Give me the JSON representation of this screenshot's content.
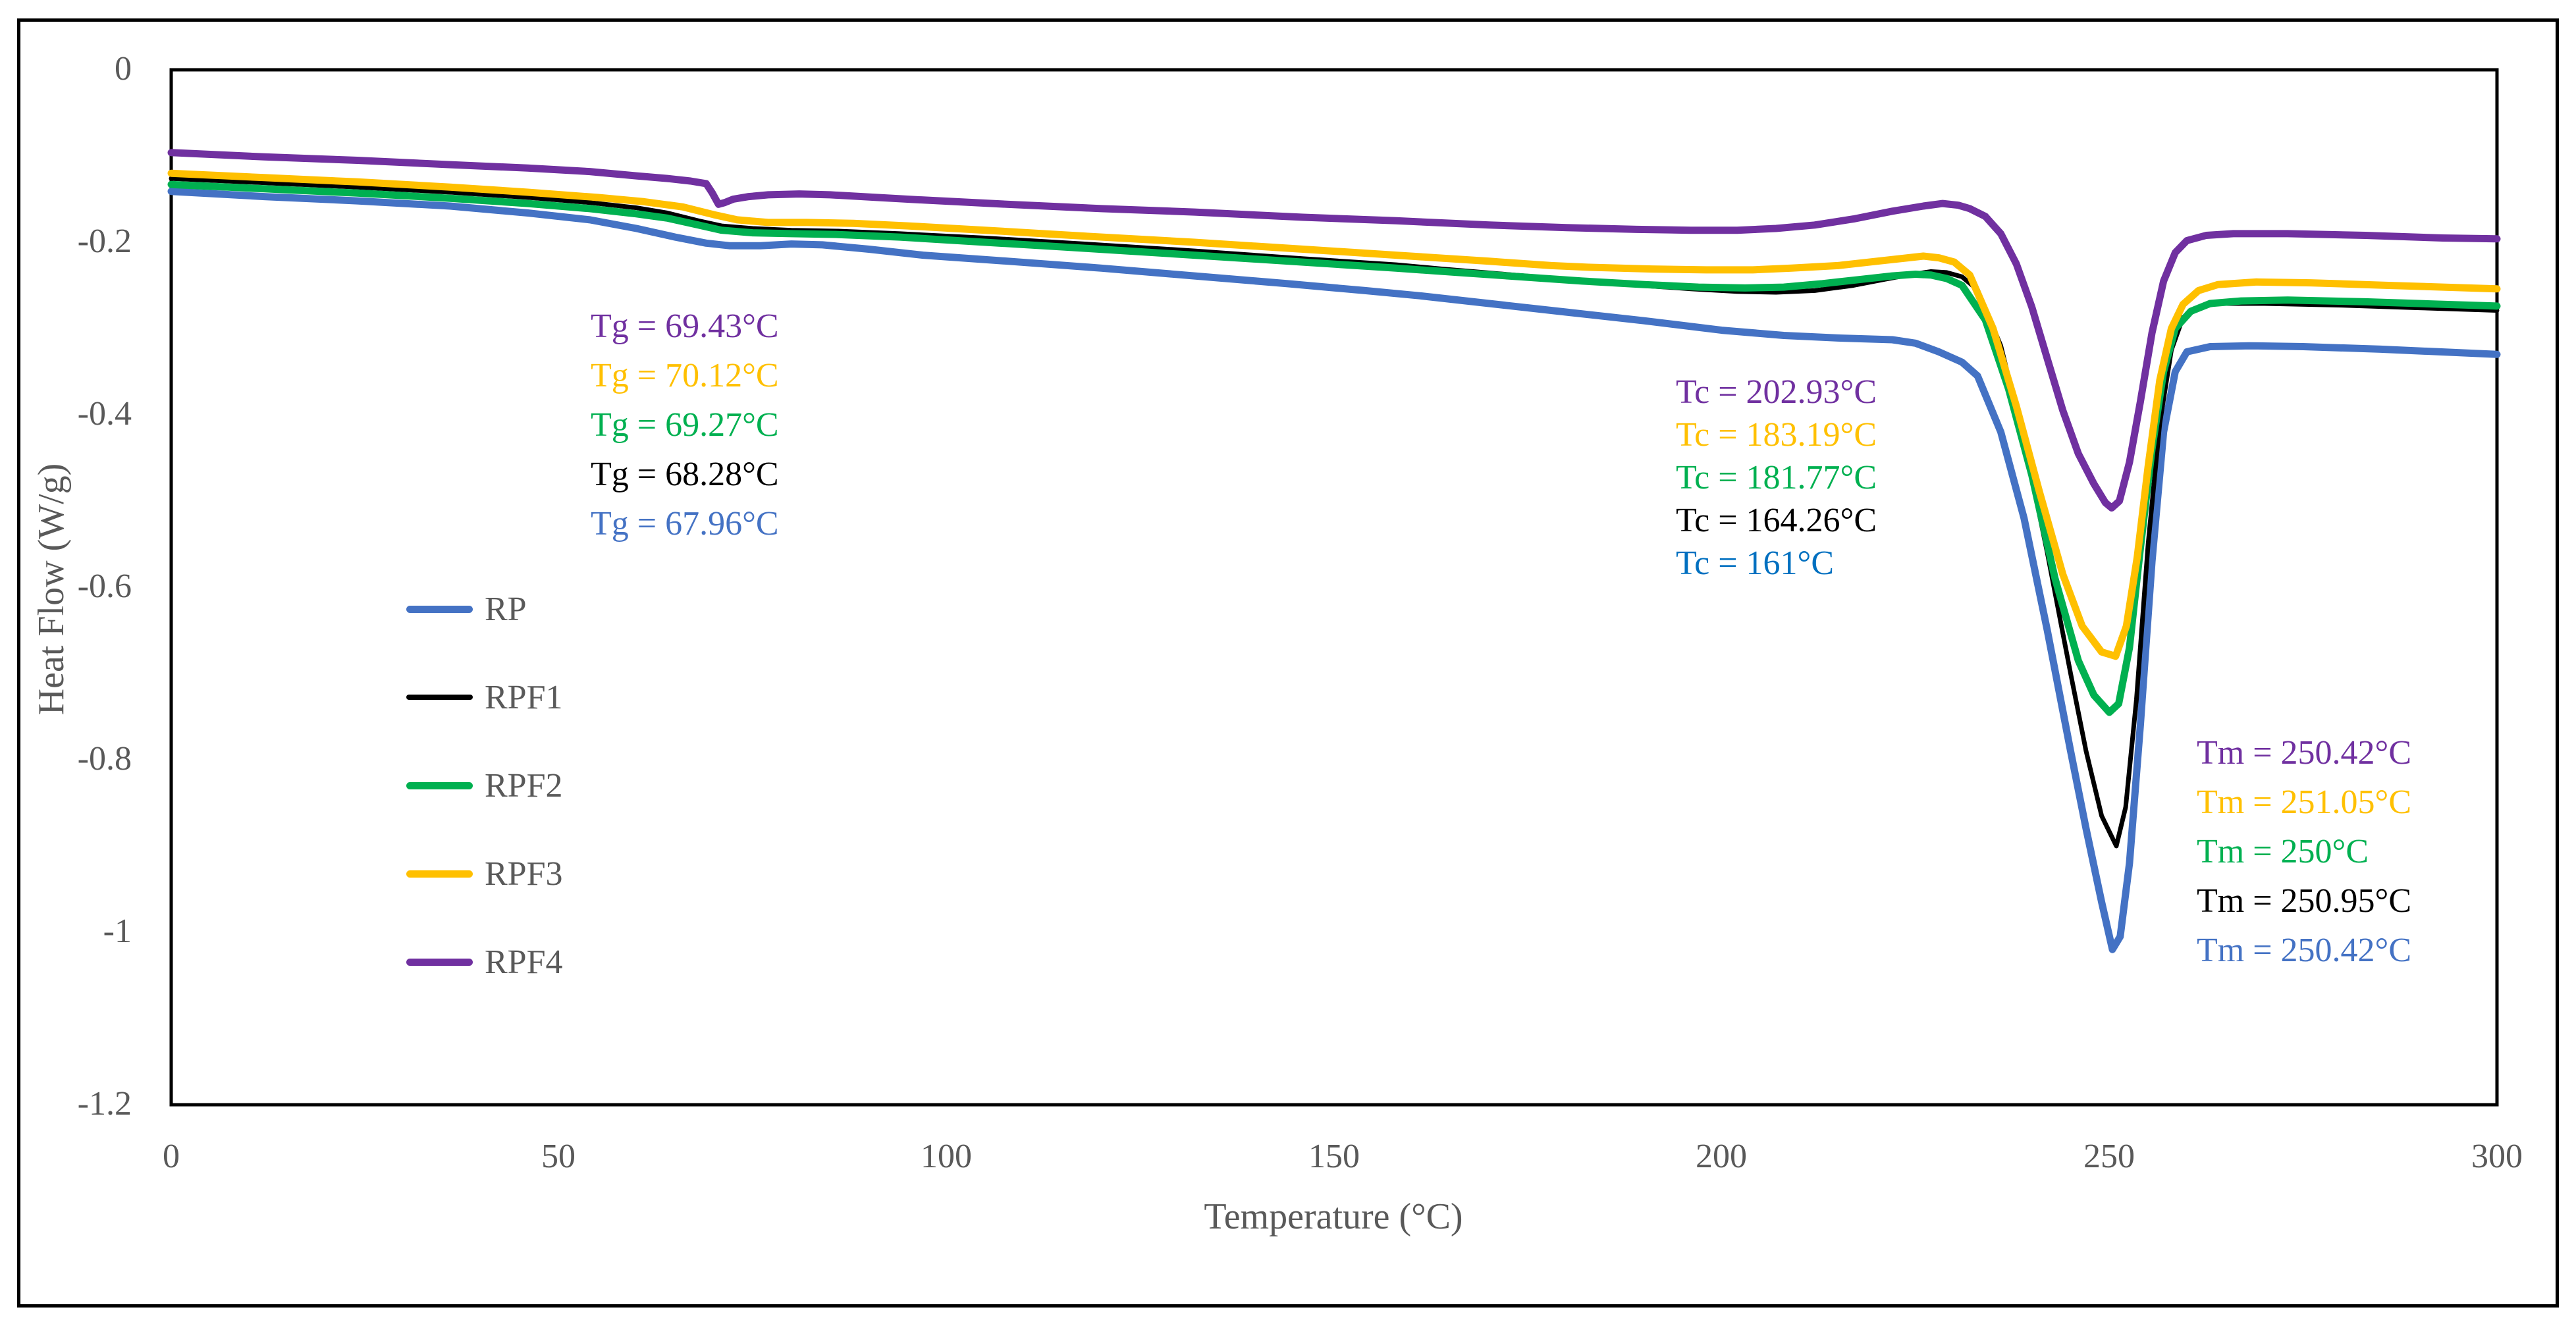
{
  "figure": {
    "background": "#ffffff",
    "border_color": "#000000",
    "text_color": "#595959"
  },
  "axes": {
    "x": {
      "title": "Temperature (°C)",
      "ticks": [
        "0",
        "50",
        "100",
        "150",
        "200",
        "250",
        "300"
      ]
    },
    "y": {
      "title": "Heat Flow (W/g)",
      "ticks": [
        "0",
        "-0.2",
        "-0.4",
        "-0.6",
        "-0.8",
        "-1",
        "-1.2"
      ]
    }
  },
  "legend": {
    "items": [
      {
        "label": "RP",
        "color": "#4472C4",
        "thickness": 11
      },
      {
        "label": "RPF1",
        "color": "#000000",
        "thickness": 8
      },
      {
        "label": "RPF2",
        "color": "#00B050",
        "thickness": 11
      },
      {
        "label": "RPF3",
        "color": "#FFC000",
        "thickness": 11
      },
      {
        "label": "RPF4",
        "color": "#7030A0",
        "thickness": 11
      }
    ]
  },
  "annotations": {
    "tg": [
      {
        "text": "Tg = 69.43°C",
        "color": "#7030A0"
      },
      {
        "text": "Tg = 70.12°C",
        "color": "#FFC000"
      },
      {
        "text": "Tg = 69.27°C",
        "color": "#00B050"
      },
      {
        "text": "Tg = 68.28°C",
        "color": "#000000"
      },
      {
        "text": "Tg = 67.96°C",
        "color": "#4472C4"
      }
    ],
    "tc": [
      {
        "text": "Tc = 202.93°C",
        "color": "#7030A0"
      },
      {
        "text": "Tc = 183.19°C",
        "color": "#FFC000"
      },
      {
        "text": "Tc = 181.77°C",
        "color": "#00B050"
      },
      {
        "text": "Tc = 164.26°C",
        "color": "#000000"
      },
      {
        "text": "Tc = 161°C",
        "color": "#0070C0"
      }
    ],
    "tm": [
      {
        "text": "Tm = 250.42°C",
        "color": "#7030A0"
      },
      {
        "text": "Tm = 251.05°C",
        "color": "#FFC000"
      },
      {
        "text": "Tm = 250°C",
        "color": "#00B050"
      },
      {
        "text": "Tm = 250.95°C",
        "color": "#000000"
      },
      {
        "text": "Tm = 250.42°C",
        "color": "#4472C4"
      }
    ]
  },
  "chart_data": {
    "type": "line",
    "title": "",
    "xlabel": "Temperature (°C)",
    "ylabel": "Heat Flow (W/g)",
    "xlim": [
      0,
      300
    ],
    "ylim": [
      -1.2,
      0
    ],
    "grid": false,
    "legend_position": "inside-left",
    "series": [
      {
        "name": "RP",
        "color": "#4472C4",
        "width": 11,
        "tg_c": 67.96,
        "tc_c": 161,
        "tm_c": 250.42,
        "points": [
          [
            0,
            -0.141
          ],
          [
            12,
            -0.147
          ],
          [
            24,
            -0.152
          ],
          [
            36,
            -0.158
          ],
          [
            46,
            -0.166
          ],
          [
            54,
            -0.174
          ],
          [
            60,
            -0.184
          ],
          [
            65,
            -0.194
          ],
          [
            69,
            -0.201
          ],
          [
            72,
            -0.204
          ],
          [
            76,
            -0.204
          ],
          [
            80,
            -0.202
          ],
          [
            84,
            -0.203
          ],
          [
            90,
            -0.208
          ],
          [
            97,
            -0.215
          ],
          [
            108,
            -0.222
          ],
          [
            120,
            -0.23
          ],
          [
            132,
            -0.239
          ],
          [
            144,
            -0.248
          ],
          [
            154,
            -0.256
          ],
          [
            161,
            -0.262
          ],
          [
            170,
            -0.271
          ],
          [
            180,
            -0.281
          ],
          [
            190,
            -0.291
          ],
          [
            200,
            -0.302
          ],
          [
            208,
            -0.308
          ],
          [
            215,
            -0.311
          ],
          [
            222,
            -0.313
          ],
          [
            225,
            -0.317
          ],
          [
            228,
            -0.327
          ],
          [
            231,
            -0.339
          ],
          [
            233,
            -0.355
          ],
          [
            236,
            -0.42
          ],
          [
            239,
            -0.52
          ],
          [
            242,
            -0.65
          ],
          [
            245,
            -0.79
          ],
          [
            247,
            -0.88
          ],
          [
            249,
            -0.965
          ],
          [
            250.4,
            -1.02
          ],
          [
            251.4,
            -1.005
          ],
          [
            252.6,
            -0.92
          ],
          [
            254,
            -0.76
          ],
          [
            255.5,
            -0.57
          ],
          [
            257,
            -0.42
          ],
          [
            258.5,
            -0.35
          ],
          [
            260,
            -0.327
          ],
          [
            263,
            -0.321
          ],
          [
            268,
            -0.32
          ],
          [
            275,
            -0.321
          ],
          [
            285,
            -0.324
          ],
          [
            300,
            -0.33
          ]
        ]
      },
      {
        "name": "RPF1",
        "color": "#000000",
        "width": 7,
        "tg_c": 68.28,
        "tc_c": 164.26,
        "tm_c": 250.95,
        "points": [
          [
            0,
            -0.126
          ],
          [
            12,
            -0.131
          ],
          [
            24,
            -0.136
          ],
          [
            36,
            -0.142
          ],
          [
            46,
            -0.148
          ],
          [
            54,
            -0.154
          ],
          [
            60,
            -0.16
          ],
          [
            64,
            -0.166
          ],
          [
            68,
            -0.175
          ],
          [
            71,
            -0.181
          ],
          [
            75,
            -0.184
          ],
          [
            80,
            -0.186
          ],
          [
            86,
            -0.187
          ],
          [
            94,
            -0.19
          ],
          [
            105,
            -0.195
          ],
          [
            118,
            -0.202
          ],
          [
            132,
            -0.21
          ],
          [
            146,
            -0.219
          ],
          [
            158,
            -0.226
          ],
          [
            164,
            -0.231
          ],
          [
            172,
            -0.237
          ],
          [
            180,
            -0.243
          ],
          [
            188,
            -0.249
          ],
          [
            196,
            -0.254
          ],
          [
            202,
            -0.257
          ],
          [
            207,
            -0.258
          ],
          [
            212,
            -0.256
          ],
          [
            217,
            -0.25
          ],
          [
            221,
            -0.243
          ],
          [
            224,
            -0.238
          ],
          [
            227,
            -0.234
          ],
          [
            229,
            -0.235
          ],
          [
            231,
            -0.24
          ],
          [
            233,
            -0.255
          ],
          [
            236,
            -0.32
          ],
          [
            239,
            -0.43
          ],
          [
            242,
            -0.56
          ],
          [
            245,
            -0.7
          ],
          [
            247,
            -0.79
          ],
          [
            249,
            -0.865
          ],
          [
            250.9,
            -0.9
          ],
          [
            252.1,
            -0.855
          ],
          [
            253.5,
            -0.73
          ],
          [
            255,
            -0.55
          ],
          [
            256.5,
            -0.41
          ],
          [
            258,
            -0.325
          ],
          [
            259.5,
            -0.287
          ],
          [
            261.5,
            -0.275
          ],
          [
            264,
            -0.271
          ],
          [
            270,
            -0.271
          ],
          [
            280,
            -0.273
          ],
          [
            290,
            -0.276
          ],
          [
            300,
            -0.279
          ]
        ]
      },
      {
        "name": "RPF2",
        "color": "#00B050",
        "width": 11,
        "tg_c": 69.27,
        "tc_c": 181.77,
        "tm_c": 250,
        "points": [
          [
            0,
            -0.133
          ],
          [
            12,
            -0.138
          ],
          [
            24,
            -0.143
          ],
          [
            36,
            -0.149
          ],
          [
            46,
            -0.155
          ],
          [
            54,
            -0.161
          ],
          [
            60,
            -0.167
          ],
          [
            64,
            -0.172
          ],
          [
            68,
            -0.18
          ],
          [
            71,
            -0.186
          ],
          [
            75,
            -0.189
          ],
          [
            80,
            -0.19
          ],
          [
            86,
            -0.191
          ],
          [
            94,
            -0.194
          ],
          [
            105,
            -0.2
          ],
          [
            118,
            -0.207
          ],
          [
            132,
            -0.215
          ],
          [
            146,
            -0.223
          ],
          [
            158,
            -0.23
          ],
          [
            166,
            -0.235
          ],
          [
            174,
            -0.24
          ],
          [
            182,
            -0.245
          ],
          [
            190,
            -0.249
          ],
          [
            197,
            -0.252
          ],
          [
            203,
            -0.253
          ],
          [
            208,
            -0.252
          ],
          [
            213,
            -0.248
          ],
          [
            218,
            -0.243
          ],
          [
            222,
            -0.239
          ],
          [
            225,
            -0.237
          ],
          [
            227,
            -0.238
          ],
          [
            229,
            -0.242
          ],
          [
            231,
            -0.25
          ],
          [
            234,
            -0.29
          ],
          [
            237,
            -0.37
          ],
          [
            240,
            -0.47
          ],
          [
            243,
            -0.59
          ],
          [
            246,
            -0.685
          ],
          [
            248,
            -0.725
          ],
          [
            250,
            -0.745
          ],
          [
            251.2,
            -0.735
          ],
          [
            252.6,
            -0.67
          ],
          [
            254,
            -0.555
          ],
          [
            255.5,
            -0.44
          ],
          [
            257,
            -0.35
          ],
          [
            258.5,
            -0.3
          ],
          [
            260.5,
            -0.28
          ],
          [
            263,
            -0.271
          ],
          [
            267,
            -0.268
          ],
          [
            273,
            -0.267
          ],
          [
            283,
            -0.269
          ],
          [
            300,
            -0.274
          ]
        ]
      },
      {
        "name": "RPF3",
        "color": "#FFC000",
        "width": 11,
        "tg_c": 70.12,
        "tc_c": 183.19,
        "tm_c": 251.05,
        "points": [
          [
            0,
            -0.12
          ],
          [
            12,
            -0.125
          ],
          [
            24,
            -0.13
          ],
          [
            36,
            -0.136
          ],
          [
            46,
            -0.142
          ],
          [
            55,
            -0.148
          ],
          [
            61,
            -0.153
          ],
          [
            66,
            -0.159
          ],
          [
            70,
            -0.168
          ],
          [
            73,
            -0.174
          ],
          [
            77,
            -0.177
          ],
          [
            82,
            -0.177
          ],
          [
            88,
            -0.178
          ],
          [
            95,
            -0.181
          ],
          [
            105,
            -0.186
          ],
          [
            118,
            -0.193
          ],
          [
            132,
            -0.2
          ],
          [
            146,
            -0.208
          ],
          [
            158,
            -0.215
          ],
          [
            170,
            -0.222
          ],
          [
            178,
            -0.227
          ],
          [
            183,
            -0.229
          ],
          [
            191,
            -0.231
          ],
          [
            198,
            -0.232
          ],
          [
            204,
            -0.232
          ],
          [
            209,
            -0.23
          ],
          [
            215,
            -0.227
          ],
          [
            220,
            -0.222
          ],
          [
            224,
            -0.218
          ],
          [
            226,
            -0.216
          ],
          [
            228,
            -0.218
          ],
          [
            230,
            -0.223
          ],
          [
            232,
            -0.238
          ],
          [
            235,
            -0.3
          ],
          [
            238,
            -0.39
          ],
          [
            241,
            -0.49
          ],
          [
            244,
            -0.585
          ],
          [
            246.5,
            -0.645
          ],
          [
            249,
            -0.675
          ],
          [
            250.8,
            -0.68
          ],
          [
            252.2,
            -0.645
          ],
          [
            253.6,
            -0.565
          ],
          [
            255,
            -0.46
          ],
          [
            256.5,
            -0.36
          ],
          [
            258,
            -0.3
          ],
          [
            259.5,
            -0.272
          ],
          [
            261.5,
            -0.256
          ],
          [
            264,
            -0.249
          ],
          [
            269,
            -0.246
          ],
          [
            276,
            -0.247
          ],
          [
            286,
            -0.25
          ],
          [
            300,
            -0.254
          ]
        ]
      },
      {
        "name": "RPF4",
        "color": "#7030A0",
        "width": 11,
        "tg_c": 69.43,
        "tc_c": 202.93,
        "tm_c": 250.42,
        "points": [
          [
            0,
            -0.096
          ],
          [
            12,
            -0.101
          ],
          [
            24,
            -0.105
          ],
          [
            36,
            -0.11
          ],
          [
            46,
            -0.114
          ],
          [
            54,
            -0.118
          ],
          [
            60,
            -0.123
          ],
          [
            64,
            -0.126
          ],
          [
            67,
            -0.129
          ],
          [
            69,
            -0.132
          ],
          [
            69.8,
            -0.143
          ],
          [
            70.6,
            -0.156
          ],
          [
            71.4,
            -0.154
          ],
          [
            72.5,
            -0.15
          ],
          [
            74.5,
            -0.147
          ],
          [
            77,
            -0.145
          ],
          [
            81,
            -0.144
          ],
          [
            85,
            -0.145
          ],
          [
            91,
            -0.148
          ],
          [
            97,
            -0.151
          ],
          [
            108,
            -0.156
          ],
          [
            120,
            -0.161
          ],
          [
            132,
            -0.165
          ],
          [
            146,
            -0.171
          ],
          [
            158,
            -0.175
          ],
          [
            170,
            -0.18
          ],
          [
            180,
            -0.183
          ],
          [
            189,
            -0.185
          ],
          [
            196,
            -0.186
          ],
          [
            202,
            -0.186
          ],
          [
            207,
            -0.184
          ],
          [
            212,
            -0.18
          ],
          [
            217,
            -0.173
          ],
          [
            222,
            -0.164
          ],
          [
            226,
            -0.158
          ],
          [
            228.5,
            -0.155
          ],
          [
            230.5,
            -0.157
          ],
          [
            232,
            -0.161
          ],
          [
            234,
            -0.17
          ],
          [
            236,
            -0.19
          ],
          [
            238,
            -0.225
          ],
          [
            240,
            -0.275
          ],
          [
            242,
            -0.335
          ],
          [
            244,
            -0.395
          ],
          [
            246,
            -0.445
          ],
          [
            248,
            -0.48
          ],
          [
            249.5,
            -0.502
          ],
          [
            250.3,
            -0.508
          ],
          [
            251.3,
            -0.5
          ],
          [
            252.6,
            -0.455
          ],
          [
            254,
            -0.385
          ],
          [
            255.5,
            -0.305
          ],
          [
            257,
            -0.245
          ],
          [
            258.5,
            -0.212
          ],
          [
            260,
            -0.198
          ],
          [
            262.5,
            -0.192
          ],
          [
            266,
            -0.19
          ],
          [
            273,
            -0.19
          ],
          [
            283,
            -0.192
          ],
          [
            293,
            -0.195
          ],
          [
            300,
            -0.196
          ]
        ]
      }
    ]
  }
}
